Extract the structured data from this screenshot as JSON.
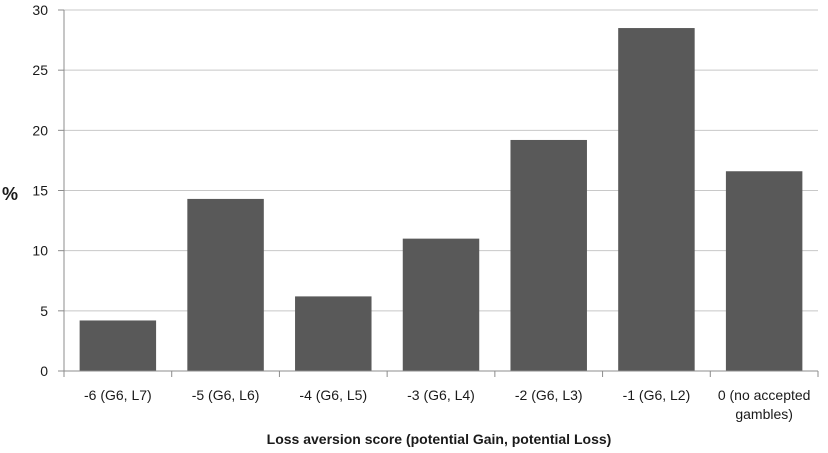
{
  "chart_data": {
    "type": "bar",
    "title": "",
    "xlabel": "Loss aversion score (potential Gain, potential Loss)",
    "ylabel": "%",
    "ylim": [
      0,
      30
    ],
    "yticks": [
      0,
      5,
      10,
      15,
      20,
      25,
      30
    ],
    "grid": true,
    "bar_color": "#595959",
    "categories": [
      [
        "-6 (G6, L7)"
      ],
      [
        "-5 (G6, L6)"
      ],
      [
        "-4 (G6, L5)"
      ],
      [
        "-3 (G6, L4)"
      ],
      [
        "-2 (G6, L3)"
      ],
      [
        "-1 (G6, L2)"
      ],
      [
        "0 (no accepted",
        "gambles)"
      ]
    ],
    "values": [
      4.2,
      14.3,
      6.2,
      11.0,
      19.2,
      28.5,
      16.6
    ]
  }
}
